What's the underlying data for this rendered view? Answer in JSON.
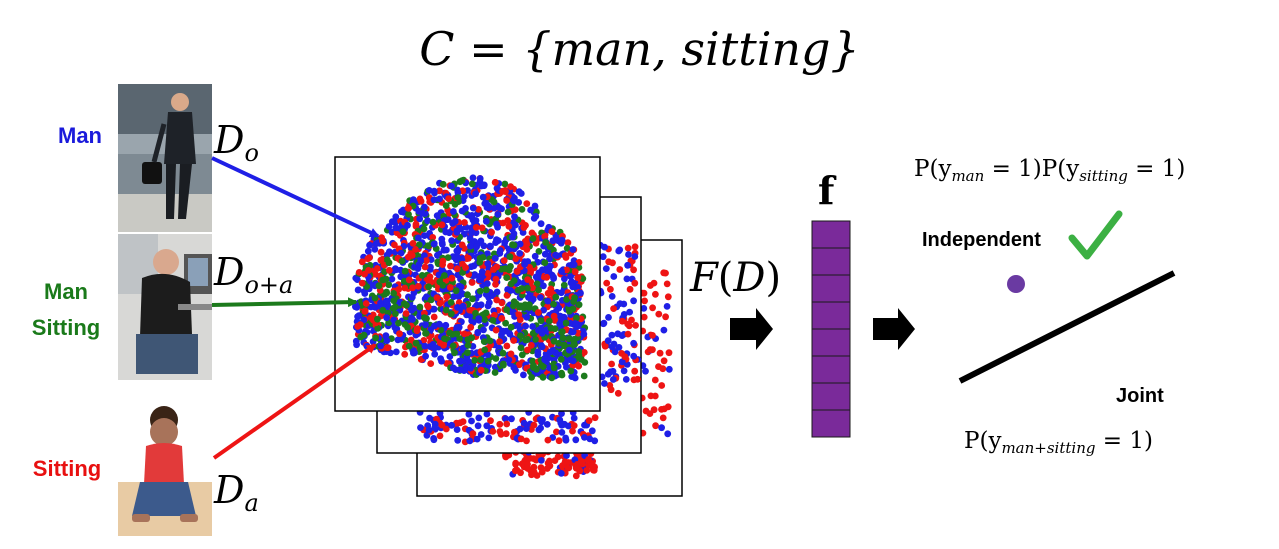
{
  "title": {
    "set_name": "C",
    "set_elements": "{man, sitting}"
  },
  "inputs": [
    {
      "label_lines": [
        "Man"
      ],
      "color": "#1a1adb",
      "domain": "D",
      "domain_sub": "o",
      "photo_icon": "walking-man-photo"
    },
    {
      "label_lines": [
        "Man",
        "Sitting"
      ],
      "color": "#1a7a1a",
      "domain": "D",
      "domain_sub": "o+a",
      "photo_icon": "seated-man-at-computer-photo"
    },
    {
      "label_lines": [
        "Sitting"
      ],
      "color": "#e81010",
      "domain": "D",
      "domain_sub": "a",
      "photo_icon": "sitting-child-photo"
    }
  ],
  "feature_function": {
    "name": "F",
    "argument": "D"
  },
  "feature_vector": {
    "label": "f",
    "cells": 8,
    "color": "#7a2a9a"
  },
  "independent": {
    "formula_left": "P(y",
    "sub1": "man",
    "mid": " = 1)P(y",
    "sub2": "sitting",
    "end": " = 1)",
    "label": "Independent",
    "check_color": "#3cb043",
    "dot_color": "#6a3aa2"
  },
  "joint": {
    "label": "Joint",
    "formula_left": "P(y",
    "sub": "man+sitting",
    "end": " = 1)"
  },
  "scatter_colors": {
    "blue": "#1f1fe6",
    "green": "#1c7a1c",
    "red": "#ee1414"
  }
}
